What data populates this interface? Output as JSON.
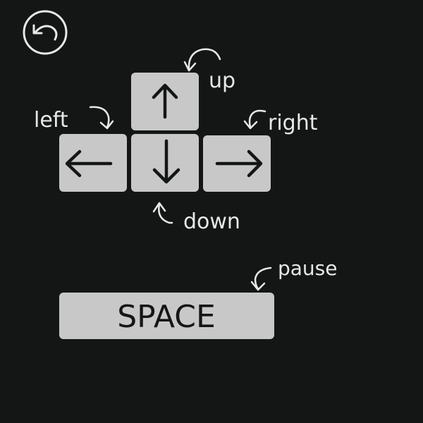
{
  "screen": {
    "background_color": "#141616",
    "key_color": "#c8c8c8",
    "ink_color": "#141616",
    "label_color": "#e8e8e8"
  },
  "back_button": {
    "icon": "back-arrow-icon"
  },
  "keys": {
    "up": {
      "icon": "arrow-up-icon"
    },
    "left": {
      "icon": "arrow-left-icon"
    },
    "down": {
      "icon": "arrow-down-icon"
    },
    "right": {
      "icon": "arrow-right-icon"
    },
    "space": {
      "label": "SPACE"
    }
  },
  "labels": {
    "up": "up",
    "left": "left",
    "down": "down",
    "right": "right",
    "pause": "pause"
  }
}
